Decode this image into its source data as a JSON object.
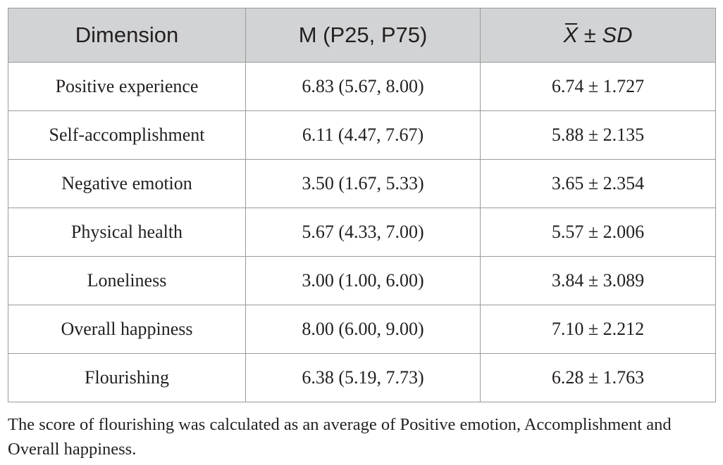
{
  "table": {
    "headers": {
      "dimension": "Dimension",
      "median": "M (P25, P75)",
      "mean_symbol": "X",
      "mean_rest": " ± SD"
    },
    "rows": [
      {
        "dimension": "Positive experience",
        "median": "6.83 (5.67, 8.00)",
        "mean_sd": "6.74 ± 1.727"
      },
      {
        "dimension": "Self-accomplishment",
        "median": "6.11 (4.47, 7.67)",
        "mean_sd": "5.88 ± 2.135"
      },
      {
        "dimension": "Negative emotion",
        "median": "3.50 (1.67, 5.33)",
        "mean_sd": "3.65 ± 2.354"
      },
      {
        "dimension": "Physical health",
        "median": "5.67 (4.33, 7.00)",
        "mean_sd": "5.57 ± 2.006"
      },
      {
        "dimension": "Loneliness",
        "median": "3.00 (1.00, 6.00)",
        "mean_sd": "3.84 ± 3.089"
      },
      {
        "dimension": "Overall happiness",
        "median": "8.00 (6.00, 9.00)",
        "mean_sd": "7.10 ± 2.212"
      },
      {
        "dimension": "Flourishing",
        "median": "6.38 (5.19, 7.73)",
        "mean_sd": "6.28 ± 1.763"
      }
    ]
  },
  "footnote": "The score of flourishing was calculated as an average of Positive emotion, Accomplishment and Overall happiness.",
  "colors": {
    "header_background": "#d1d3d4",
    "border": "#9a9a9a",
    "text": "#231f20"
  }
}
